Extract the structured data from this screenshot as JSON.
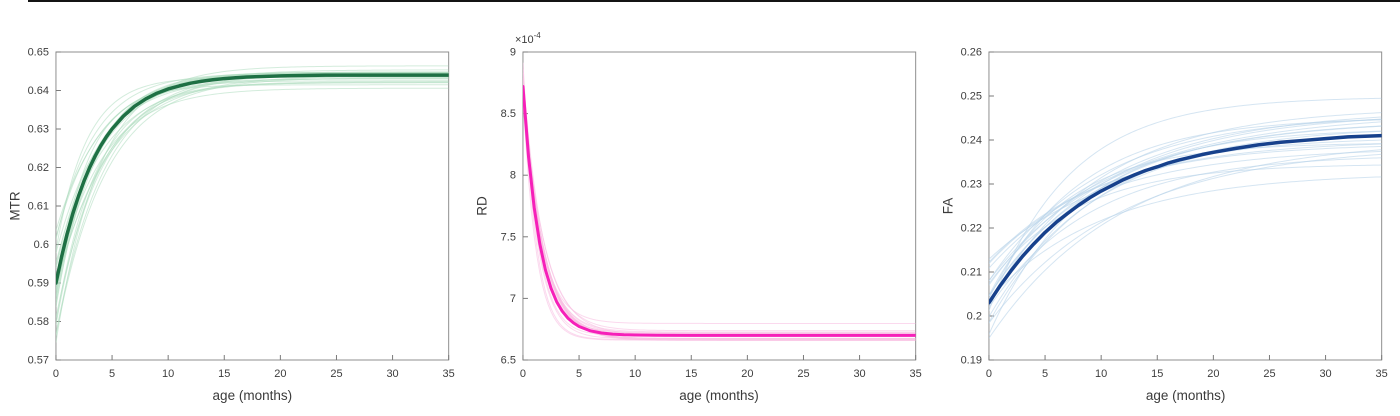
{
  "figure": {
    "background": "#ffffff",
    "top_rule_color": "#141414"
  },
  "chart_data": [
    {
      "type": "line",
      "title": "",
      "xlabel": "age (months)",
      "ylabel": "MTR",
      "xlim": [
        0,
        35
      ],
      "ylim": [
        0.57,
        0.65
      ],
      "xticks": [
        0,
        5,
        10,
        15,
        20,
        25,
        30,
        35
      ],
      "xtick_labels": [
        "0",
        "5",
        "10",
        "15",
        "20",
        "25",
        "30",
        "35"
      ],
      "yticks": [
        0.57,
        0.58,
        0.59,
        0.6,
        0.61,
        0.62,
        0.63,
        0.64,
        0.65
      ],
      "ytick_labels": [
        "0.57",
        "0.58",
        "0.59",
        "0.6",
        "0.61",
        "0.62",
        "0.63",
        "0.64",
        "0.65"
      ],
      "y_exponent": null,
      "grid": false,
      "legend": null,
      "series": [
        {
          "name": "population mean curve",
          "role": "mean",
          "color": "#1e7044",
          "line_width": 3.5,
          "x": [
            0,
            0.5,
            1,
            1.5,
            2,
            2.5,
            3,
            3.5,
            4,
            4.5,
            5,
            6,
            7,
            8,
            9,
            10,
            11,
            12,
            13,
            14,
            15,
            16,
            17,
            18,
            19,
            20,
            22,
            24,
            26,
            28,
            30,
            32,
            35
          ],
          "y": [
            0.59,
            0.5968,
            0.6028,
            0.608,
            0.6125,
            0.6165,
            0.62,
            0.623,
            0.6257,
            0.628,
            0.63,
            0.6333,
            0.6359,
            0.6378,
            0.6393,
            0.6404,
            0.6412,
            0.6419,
            0.6424,
            0.6428,
            0.6431,
            0.6433,
            0.6435,
            0.6436,
            0.6437,
            0.6438,
            0.6439,
            0.644,
            0.644,
            0.644,
            0.644,
            0.644,
            0.644
          ]
        },
        {
          "name": "individual subject curves",
          "role": "subjects",
          "color": "#aedcbf",
          "opacity": 0.55,
          "line_width": 1,
          "count": 24,
          "seed": 41,
          "model": {
            "y0": 0.59,
            "yinf": 0.644,
            "tau": 3.7
          },
          "sd": {
            "y0": 0.008,
            "yinf": 0.0016,
            "tau_frac": 0.18
          }
        }
      ]
    },
    {
      "type": "line",
      "title": "",
      "xlabel": "age (months)",
      "ylabel": "RD",
      "xlim": [
        0,
        35
      ],
      "ylim": [
        6.5,
        9
      ],
      "xticks": [
        0,
        5,
        10,
        15,
        20,
        25,
        30,
        35
      ],
      "xtick_labels": [
        "0",
        "5",
        "10",
        "15",
        "20",
        "25",
        "30",
        "35"
      ],
      "yticks": [
        6.5,
        7,
        7.5,
        8,
        8.5,
        9
      ],
      "ytick_labels": [
        "6.5",
        "7",
        "7.5",
        "8",
        "8.5",
        "9"
      ],
      "y_exponent": {
        "base": "×10",
        "exp": "-4"
      },
      "grid": false,
      "legend": null,
      "series": [
        {
          "name": "population mean curve",
          "role": "mean",
          "color": "#f620b9",
          "line_width": 3,
          "x": [
            0,
            0.5,
            1,
            1.5,
            2,
            2.5,
            3,
            3.5,
            4,
            4.5,
            5,
            6,
            7,
            8,
            9,
            10,
            12,
            15,
            20,
            25,
            30,
            35
          ],
          "y": [
            8.72,
            8.147,
            7.737,
            7.443,
            7.232,
            7.082,
            6.973,
            6.896,
            6.84,
            6.801,
            6.772,
            6.737,
            6.719,
            6.71,
            6.705,
            6.703,
            6.701,
            6.7,
            6.7,
            6.7,
            6.7,
            6.7
          ]
        },
        {
          "name": "individual subject curves",
          "role": "subjects",
          "color": "#f8c0e2",
          "opacity": 0.6,
          "line_width": 1,
          "count": 20,
          "seed": 7,
          "model": {
            "y0": 8.72,
            "yinf": 6.7,
            "tau": 1.5
          },
          "sd": {
            "y0": 0.07,
            "yinf": 0.032,
            "tau_frac": 0.15
          }
        }
      ]
    },
    {
      "type": "line",
      "title": "",
      "xlabel": "age (months)",
      "ylabel": "FA",
      "xlim": [
        0,
        35
      ],
      "ylim": [
        0.19,
        0.26
      ],
      "xticks": [
        0,
        5,
        10,
        15,
        20,
        25,
        30,
        35
      ],
      "xtick_labels": [
        "0",
        "5",
        "10",
        "15",
        "20",
        "25",
        "30",
        "35"
      ],
      "yticks": [
        0.19,
        0.2,
        0.21,
        0.22,
        0.23,
        0.24,
        0.25,
        0.26
      ],
      "ytick_labels": [
        "0.19",
        "0.2",
        "0.21",
        "0.22",
        "0.23",
        "0.24",
        "0.25",
        "0.26"
      ],
      "y_exponent": null,
      "grid": false,
      "legend": null,
      "series": [
        {
          "name": "population mean curve",
          "role": "mean",
          "color": "#17418c",
          "line_width": 3.5,
          "x": [
            0,
            1,
            2,
            3,
            4,
            5,
            6,
            7,
            8,
            9,
            10,
            11,
            12,
            13,
            14,
            15,
            16,
            17,
            18,
            19,
            20,
            22,
            24,
            26,
            28,
            30,
            32,
            35
          ],
          "y": [
            0.203,
            0.2069,
            0.2104,
            0.2136,
            0.2164,
            0.219,
            0.2213,
            0.2233,
            0.2252,
            0.2269,
            0.2284,
            0.2297,
            0.231,
            0.2321,
            0.2331,
            0.2339,
            0.2348,
            0.2355,
            0.2361,
            0.2367,
            0.2372,
            0.2381,
            0.2389,
            0.2395,
            0.2399,
            0.2403,
            0.2407,
            0.241
          ]
        },
        {
          "name": "individual subject curves",
          "role": "subjects",
          "color": "#b9d4ea",
          "opacity": 0.6,
          "line_width": 1,
          "count": 22,
          "seed": 23,
          "model": {
            "y0": 0.203,
            "yinf": 0.242,
            "tau": 9.5
          },
          "sd": {
            "y0": 0.0045,
            "yinf": 0.0062,
            "tau_frac": 0.18
          }
        }
      ]
    }
  ]
}
